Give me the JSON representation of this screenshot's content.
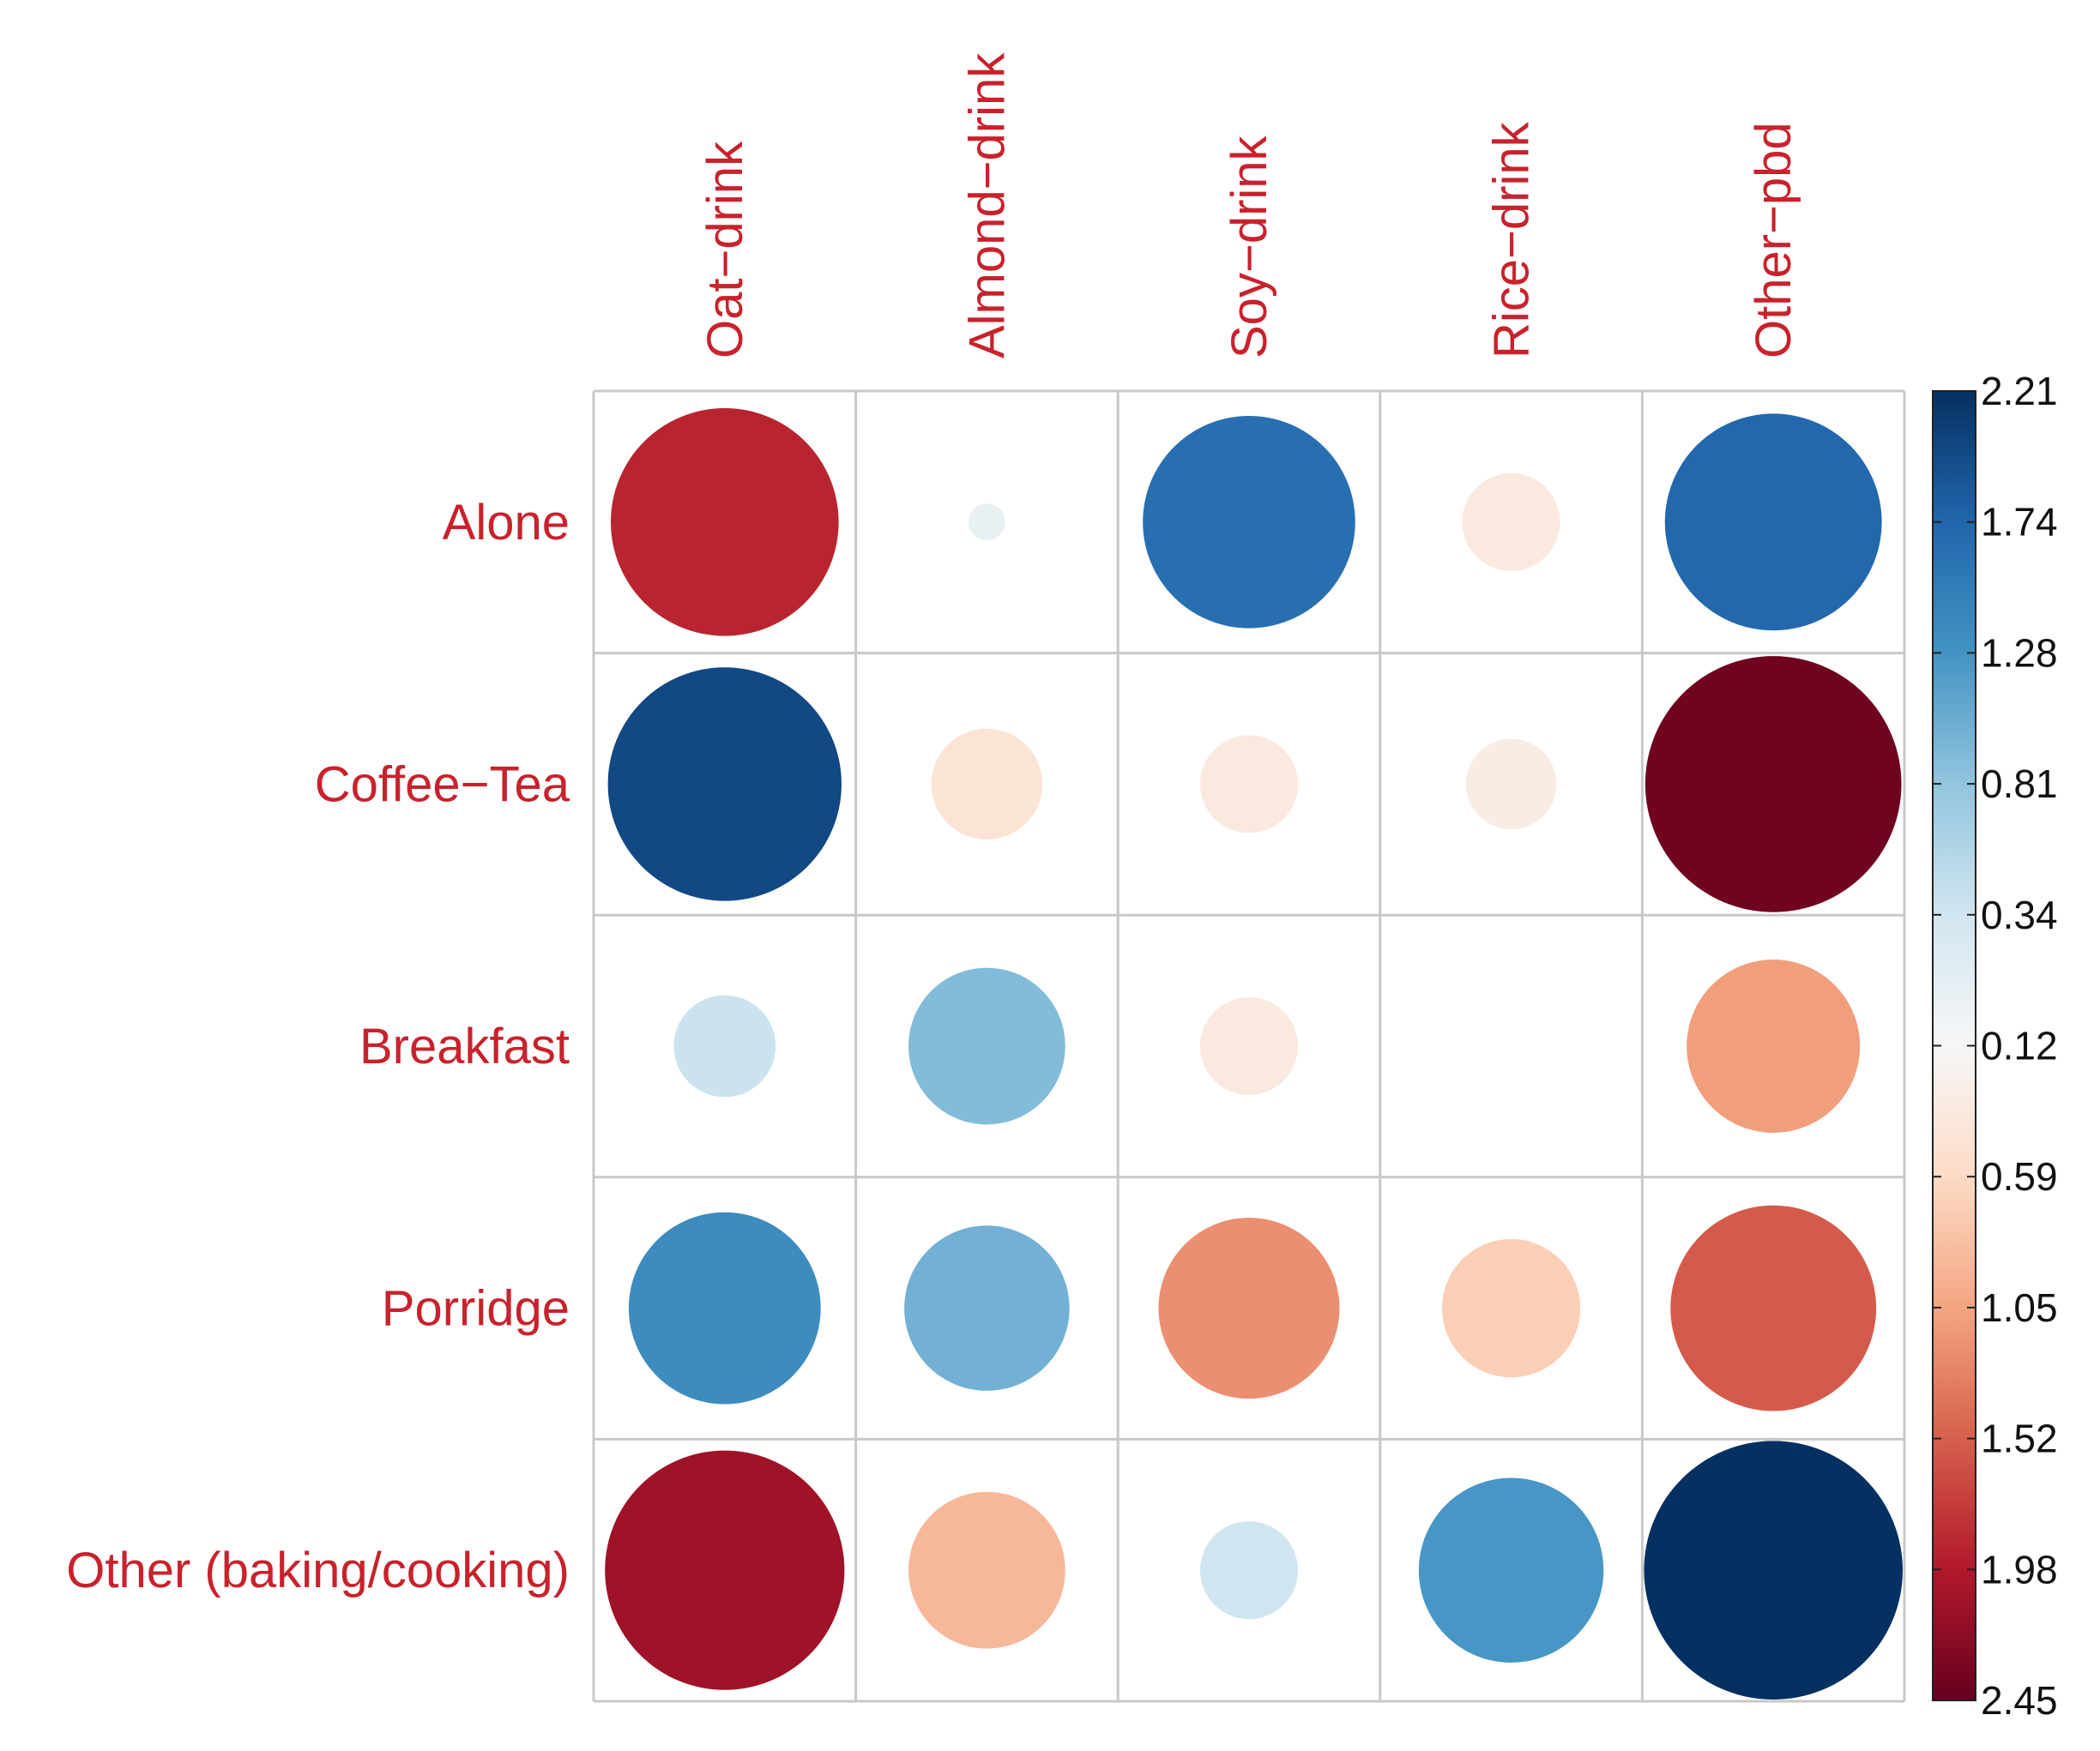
{
  "chart_data": {
    "type": "heatmap",
    "rows": [
      "Alone",
      "Coffee−Tea",
      "Breakfast",
      "Porridge",
      "Other (baking/cooking)"
    ],
    "columns": [
      "Oat−drink",
      "Almond−drink",
      "Soy−drink",
      "Rice−drink",
      "Other−pbd"
    ],
    "values": [
      [
        -1.9,
        0.05,
        1.65,
        -0.35,
        1.72
      ],
      [
        2.0,
        -0.45,
        -0.35,
        -0.3,
        -2.4
      ],
      [
        0.38,
        0.9,
        -0.35,
        0.0,
        -1.1
      ],
      [
        1.35,
        1.0,
        -1.2,
        -0.7,
        -1.55
      ],
      [
        -2.1,
        -0.9,
        0.35,
        1.25,
        2.45
      ]
    ],
    "value_encoding": "circle size = magnitude; color: blue = positive, red = negative",
    "colorbar": {
      "ticks": [
        "2.21",
        "1.74",
        "1.28",
        "0.81",
        "0.34",
        "0.12",
        "0.59",
        "1.05",
        "1.52",
        "1.98",
        "2.45"
      ],
      "tick_values": [
        2.21,
        1.74,
        1.28,
        0.81,
        0.34,
        -0.12,
        -0.59,
        -1.05,
        -1.52,
        -1.98,
        -2.45
      ],
      "range": [
        -2.45,
        2.21
      ],
      "colors_top_to_bottom": [
        "#053061",
        "#2166ac",
        "#4393c3",
        "#92c5de",
        "#d1e5f0",
        "#f7f7f7",
        "#fddbc7",
        "#f4a582",
        "#d6604d",
        "#b2182b",
        "#67001f"
      ]
    },
    "label_color": "#c8222c",
    "grid": true
  }
}
